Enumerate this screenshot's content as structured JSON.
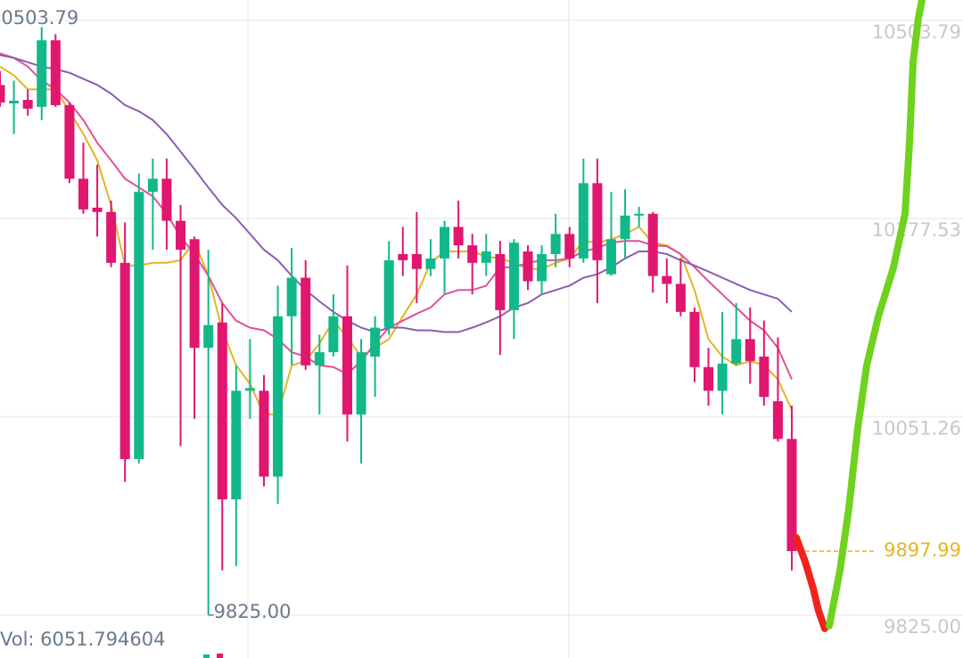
{
  "chart_data": {
    "type": "candlestick",
    "ylim": [
      9776,
      10527
    ],
    "yticks": [
      10503.79,
      10277.53,
      10051.26,
      {
        "value": 9825,
        "label": "9825.00"
      }
    ],
    "grid": true,
    "up_color": "#12b88a",
    "down_color": "#e0166f",
    "open": [
      10430,
      10409,
      10413,
      10405,
      10481,
      10407,
      10323,
      10290,
      10285,
      10227,
      10003,
      10308,
      10323,
      10275,
      10254,
      10130,
      10159,
      9957,
      10081,
      10081,
      9983,
      10166,
      10210,
      10110,
      10125,
      10166,
      10054,
      10120,
      10153,
      10237,
      10237,
      10220,
      10232,
      10268,
      10247,
      10227,
      10237,
      10173,
      10240,
      10206,
      10237,
      10260,
      10232,
      10318,
      10214,
      10254,
      10281,
      10283,
      10212,
      10203,
      10171,
      10108,
      10081,
      10112,
      10140,
      10120,
      10069,
      10026
    ],
    "high": [
      10446,
      10435,
      10425,
      10496,
      10488,
      10410,
      10364,
      10339,
      10298,
      10273,
      10329,
      10346,
      10346,
      10293,
      10257,
      10242,
      10181,
      10110,
      10140,
      10099,
      10201,
      10244,
      10230,
      10145,
      10191,
      10224,
      10140,
      10166,
      10252,
      10268,
      10285,
      10254,
      10275,
      10298,
      10260,
      10260,
      10252,
      10254,
      10247,
      10247,
      10283,
      10268,
      10346,
      10346,
      10308,
      10311,
      10291,
      10285,
      10232,
      10232,
      10176,
      10130,
      10171,
      10181,
      10176,
      10161,
      10142,
      10064
    ],
    "low": [
      10405,
      10374,
      10395,
      10390,
      10405,
      10318,
      10283,
      10257,
      10222,
      9977,
      9998,
      10242,
      10242,
      10018,
      10049,
      9825,
      9876,
      9881,
      10049,
      9972,
      9952,
      10110,
      10105,
      10054,
      10120,
      10023,
      9998,
      10074,
      10145,
      10212,
      10181,
      10212,
      10191,
      10232,
      10191,
      10212,
      10122,
      10140,
      10196,
      10191,
      10222,
      10222,
      10227,
      10181,
      10212,
      10232,
      10268,
      10193,
      10181,
      10166,
      10091,
      10064,
      10054,
      10110,
      10089,
      10064,
      10023,
      9876
    ],
    "close": [
      10410,
      10412,
      10403,
      10481,
      10407,
      10323,
      10288,
      10285,
      10227,
      10003,
      10308,
      10323,
      10275,
      10242,
      10130,
      10156,
      9957,
      10081,
      10084,
      9983,
      10166,
      10210,
      10110,
      10125,
      10166,
      10054,
      10125,
      10153,
      10230,
      10230,
      10220,
      10232,
      10268,
      10247,
      10227,
      10240,
      10173,
      10250,
      10206,
      10237,
      10260,
      10232,
      10318,
      10230,
      10254,
      10281,
      10283,
      10212,
      10203,
      10171,
      10108,
      10081,
      10112,
      10140,
      10115,
      10074,
      10026,
      9897.99
    ],
    "series": [
      {
        "color": "#e6b422",
        "values": [
          10451,
          10441,
          10425,
          10425,
          10425,
          10400,
          10374,
          10344,
          10293,
          10224,
          10224,
          10227,
          10227,
          10230,
          10252,
          10212,
          10150,
          10110,
          10089,
          10054,
          10054,
          10110,
          10115,
          10135,
          10161,
          10142,
          10120,
          10130,
          10140,
          10166,
          10191,
          10227,
          10240,
          10240,
          10240,
          10234,
          10232,
          10227,
          10220,
          10220,
          10227,
          10232,
          10252,
          10250,
          10254,
          10260,
          10268,
          10250,
          10247,
          10237,
          10196,
          10140,
          10120,
          10110,
          10115,
          10110,
          10094,
          10059
        ]
      },
      {
        "color": "#e0509a",
        "values": [
          10466,
          10461,
          10451,
          10435,
          10425,
          10410,
          10390,
          10364,
          10344,
          10323,
          10313,
          10303,
          10283,
          10257,
          10237,
          10212,
          10181,
          10161,
          10153,
          10150,
          10140,
          10125,
          10120,
          10110,
          10108,
          10100,
          10115,
          10135,
          10153,
          10161,
          10169,
          10176,
          10191,
          10196,
          10196,
          10201,
          10222,
          10222,
          10227,
          10230,
          10230,
          10232,
          10240,
          10244,
          10250,
          10252,
          10252,
          10247,
          10246,
          10237,
          10222,
          10206,
          10191,
          10176,
          10161,
          10150,
          10130,
          10094
        ]
      },
      {
        "color": "#8a5fb0",
        "values": [
          10464,
          10461,
          10456,
          10451,
          10448,
          10444,
          10437,
          10430,
          10420,
          10407,
          10400,
          10390,
          10374,
          10354,
          10334,
          10313,
          10293,
          10278,
          10260,
          10242,
          10230,
          10212,
          10196,
          10183,
          10171,
          10161,
          10153,
          10148,
          10153,
          10153,
          10150,
          10150,
          10148,
          10148,
          10153,
          10159,
          10166,
          10176,
          10181,
          10191,
          10196,
          10201,
          10210,
          10214,
          10222,
          10232,
          10240,
          10240,
          10237,
          10230,
          10224,
          10217,
          10210,
          10203,
          10196,
          10191,
          10186,
          10171
        ]
      }
    ],
    "left_top_label": "10503.79",
    "low_marker": {
      "value": 9825,
      "label": "9825.00"
    },
    "last_price": {
      "value": 9897.99,
      "label": "9897.99"
    },
    "volume_label": "Vol: 6051.794604"
  }
}
